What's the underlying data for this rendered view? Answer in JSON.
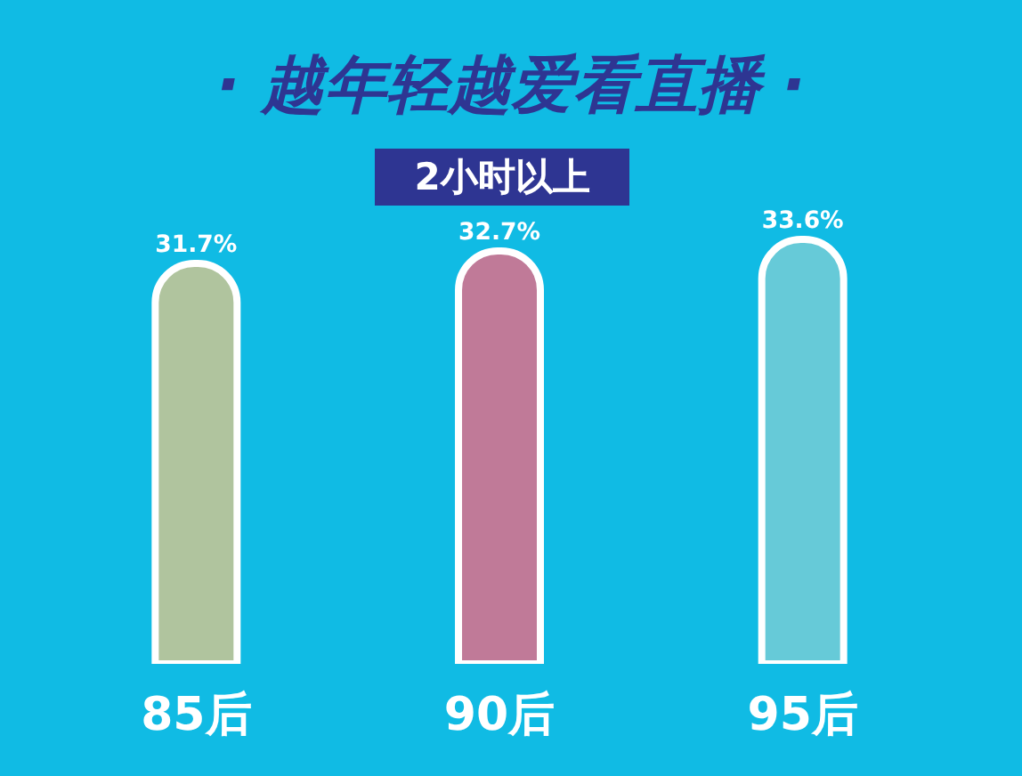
{
  "chart_data": {
    "type": "bar",
    "title": "· 越年轻越爱看直播 ·",
    "subtitle": "2小时以上",
    "categories": [
      "85后",
      "90后",
      "95后"
    ],
    "values": [
      31.7,
      32.7,
      33.6
    ],
    "colors": [
      "#b0c49e",
      "#c07a98",
      "#66cad8"
    ],
    "value_labels": [
      "31.7%",
      "32.7%",
      "33.6%"
    ],
    "tick_labels": "x"
  }
}
